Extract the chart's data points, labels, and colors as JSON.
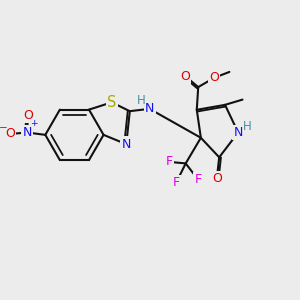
{
  "bg": "#ececec",
  "bc": "#111111",
  "bw": 1.5,
  "colors": {
    "N": "#1010ee",
    "O": "#dd0000",
    "S": "#aaaa00",
    "F": "#dd00dd",
    "H": "#4a8fa0",
    "C": "#111111"
  },
  "fs": 9.0,
  "fs_sm": 7.5
}
